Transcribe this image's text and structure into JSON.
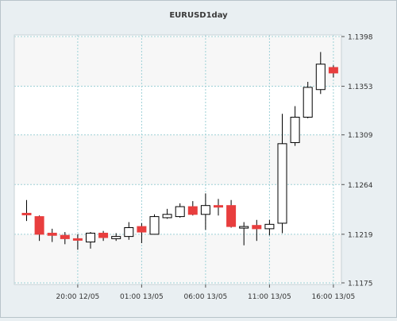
{
  "chart_data": {
    "type": "candlestick",
    "title": "EURUSD1day",
    "y_ticks": [
      "1.1398",
      "1.1353",
      "1.1309",
      "1.1264",
      "1.1219",
      "1.1175"
    ],
    "x_ticks": [
      "20:00 12/05",
      "01:00 13/05",
      "06:00 13/05",
      "11:00 13/05",
      "16:00 13/05"
    ],
    "ylim": [
      1.1175,
      1.1398
    ],
    "grid": true,
    "colors": {
      "bullish_body": "#ffffff",
      "bearish_body": "#e83e3e",
      "outline": "#000000",
      "plot_background": "#ffffff",
      "band_background": "#f7f7f7",
      "grid": "#9dd0d6",
      "page_background": "#e9eff2"
    },
    "candles": [
      {
        "open": 1.1238,
        "high": 1.125,
        "low": 1.1231,
        "close": 1.1237
      },
      {
        "open": 1.1235,
        "high": 1.1236,
        "low": 1.1213,
        "close": 1.1219
      },
      {
        "open": 1.122,
        "high": 1.1224,
        "low": 1.1212,
        "close": 1.1218
      },
      {
        "open": 1.1218,
        "high": 1.1221,
        "low": 1.121,
        "close": 1.1215
      },
      {
        "open": 1.1215,
        "high": 1.1219,
        "low": 1.1205,
        "close": 1.1214
      },
      {
        "open": 1.1212,
        "high": 1.1221,
        "low": 1.1206,
        "close": 1.122
      },
      {
        "open": 1.122,
        "high": 1.1222,
        "low": 1.1213,
        "close": 1.1216
      },
      {
        "open": 1.1215,
        "high": 1.122,
        "low": 1.1213,
        "close": 1.1217
      },
      {
        "open": 1.1217,
        "high": 1.123,
        "low": 1.1214,
        "close": 1.1225
      },
      {
        "open": 1.1226,
        "high": 1.1229,
        "low": 1.1211,
        "close": 1.1221
      },
      {
        "open": 1.1219,
        "high": 1.1237,
        "low": 1.1219,
        "close": 1.1235
      },
      {
        "open": 1.1234,
        "high": 1.1242,
        "low": 1.1233,
        "close": 1.1237
      },
      {
        "open": 1.1235,
        "high": 1.1247,
        "low": 1.1234,
        "close": 1.1244
      },
      {
        "open": 1.1244,
        "high": 1.1249,
        "low": 1.1236,
        "close": 1.1237
      },
      {
        "open": 1.1237,
        "high": 1.1256,
        "low": 1.1223,
        "close": 1.1245
      },
      {
        "open": 1.1245,
        "high": 1.1251,
        "low": 1.1236,
        "close": 1.1244
      },
      {
        "open": 1.1245,
        "high": 1.125,
        "low": 1.1225,
        "close": 1.1226
      },
      {
        "open": 1.1225,
        "high": 1.123,
        "low": 1.1209,
        "close": 1.1226
      },
      {
        "open": 1.1227,
        "high": 1.1232,
        "low": 1.1213,
        "close": 1.1224
      },
      {
        "open": 1.1224,
        "high": 1.1232,
        "low": 1.1218,
        "close": 1.1228
      },
      {
        "open": 1.1229,
        "high": 1.1328,
        "low": 1.122,
        "close": 1.1301
      },
      {
        "open": 1.1302,
        "high": 1.1335,
        "low": 1.1299,
        "close": 1.1325
      },
      {
        "open": 1.1325,
        "high": 1.1357,
        "low": 1.1324,
        "close": 1.1352
      },
      {
        "open": 1.135,
        "high": 1.1384,
        "low": 1.1346,
        "close": 1.1373
      },
      {
        "open": 1.137,
        "high": 1.1372,
        "low": 1.1361,
        "close": 1.1365
      }
    ]
  }
}
